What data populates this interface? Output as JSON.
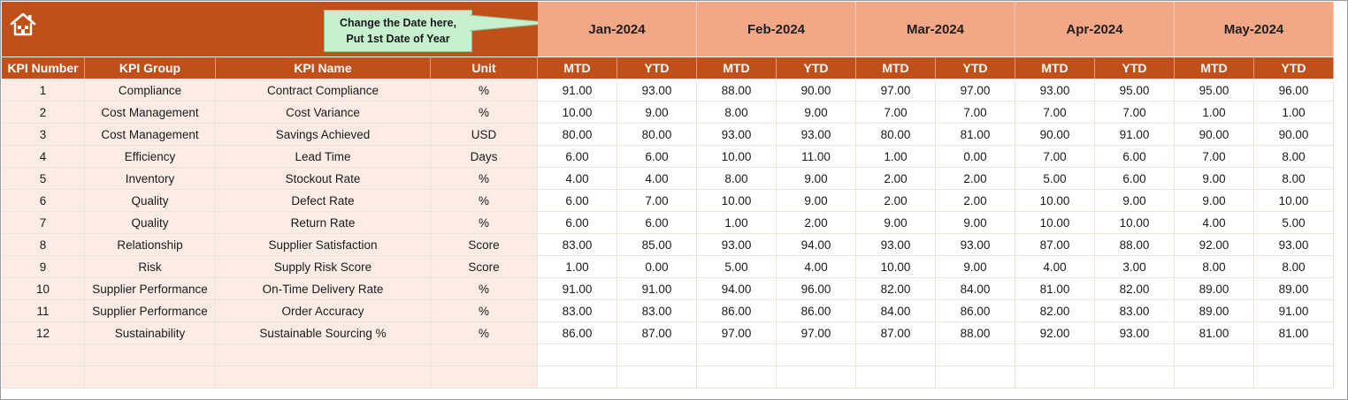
{
  "callout": {
    "line1": "Change the Date here,",
    "line2": "Put 1st Date of Year"
  },
  "months": [
    "Jan-2024",
    "Feb-2024",
    "Mar-2024",
    "Apr-2024",
    "May-2024"
  ],
  "columns": {
    "kpi_number": "KPI Number",
    "kpi_group": "KPI Group",
    "kpi_name": "KPI Name",
    "unit": "Unit",
    "mtd": "MTD",
    "ytd": "YTD"
  },
  "colors": {
    "accent": "#c0501a",
    "month_header": "#f2a886",
    "info_cell": "#fdece6",
    "callout": "#c6efce"
  },
  "rows": [
    {
      "num": "1",
      "group": "Compliance",
      "name": "Contract Compliance",
      "unit": "%",
      "vals": [
        "91.00",
        "93.00",
        "88.00",
        "90.00",
        "97.00",
        "97.00",
        "93.00",
        "95.00",
        "95.00",
        "96.00"
      ]
    },
    {
      "num": "2",
      "group": "Cost Management",
      "name": "Cost Variance",
      "unit": "%",
      "vals": [
        "10.00",
        "9.00",
        "8.00",
        "9.00",
        "7.00",
        "7.00",
        "7.00",
        "7.00",
        "1.00",
        "1.00"
      ]
    },
    {
      "num": "3",
      "group": "Cost Management",
      "name": "Savings Achieved",
      "unit": "USD",
      "vals": [
        "80.00",
        "80.00",
        "93.00",
        "93.00",
        "80.00",
        "81.00",
        "90.00",
        "91.00",
        "90.00",
        "90.00"
      ]
    },
    {
      "num": "4",
      "group": "Efficiency",
      "name": "Lead Time",
      "unit": "Days",
      "vals": [
        "6.00",
        "6.00",
        "10.00",
        "11.00",
        "1.00",
        "0.00",
        "7.00",
        "6.00",
        "7.00",
        "8.00"
      ]
    },
    {
      "num": "5",
      "group": "Inventory",
      "name": "Stockout Rate",
      "unit": "%",
      "vals": [
        "4.00",
        "4.00",
        "8.00",
        "9.00",
        "2.00",
        "2.00",
        "5.00",
        "6.00",
        "9.00",
        "8.00"
      ]
    },
    {
      "num": "6",
      "group": "Quality",
      "name": "Defect Rate",
      "unit": "%",
      "vals": [
        "6.00",
        "7.00",
        "10.00",
        "9.00",
        "2.00",
        "2.00",
        "10.00",
        "9.00",
        "9.00",
        "10.00"
      ]
    },
    {
      "num": "7",
      "group": "Quality",
      "name": "Return Rate",
      "unit": "%",
      "vals": [
        "6.00",
        "6.00",
        "1.00",
        "2.00",
        "9.00",
        "9.00",
        "10.00",
        "10.00",
        "4.00",
        "5.00"
      ]
    },
    {
      "num": "8",
      "group": "Relationship",
      "name": "Supplier Satisfaction",
      "unit": "Score",
      "vals": [
        "83.00",
        "85.00",
        "93.00",
        "94.00",
        "93.00",
        "93.00",
        "87.00",
        "88.00",
        "92.00",
        "93.00"
      ]
    },
    {
      "num": "9",
      "group": "Risk",
      "name": "Supply Risk Score",
      "unit": "Score",
      "vals": [
        "1.00",
        "0.00",
        "5.00",
        "4.00",
        "10.00",
        "9.00",
        "4.00",
        "3.00",
        "8.00",
        "8.00"
      ]
    },
    {
      "num": "10",
      "group": "Supplier Performance",
      "name": "On-Time Delivery Rate",
      "unit": "%",
      "vals": [
        "91.00",
        "91.00",
        "94.00",
        "96.00",
        "82.00",
        "84.00",
        "81.00",
        "82.00",
        "89.00",
        "89.00"
      ]
    },
    {
      "num": "11",
      "group": "Supplier Performance",
      "name": "Order Accuracy",
      "unit": "%",
      "vals": [
        "83.00",
        "83.00",
        "86.00",
        "86.00",
        "84.00",
        "86.00",
        "82.00",
        "83.00",
        "89.00",
        "91.00"
      ]
    },
    {
      "num": "12",
      "group": "Sustainability",
      "name": "Sustainable Sourcing %",
      "unit": "%",
      "vals": [
        "86.00",
        "87.00",
        "97.00",
        "97.00",
        "87.00",
        "88.00",
        "92.00",
        "93.00",
        "81.00",
        "81.00"
      ]
    }
  ],
  "empty_rows": 2,
  "icons": {
    "home": "home-icon"
  }
}
